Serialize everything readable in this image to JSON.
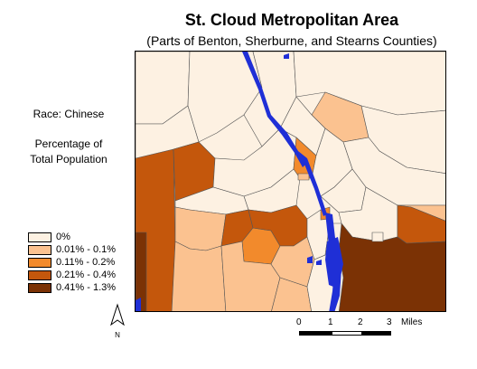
{
  "title": "St. Cloud Metropolitan Area",
  "subtitle": "(Parts of Benton, Sherburne, and Stearns Counties)",
  "race_label": "Race: Chinese",
  "percentage_label_line1": "Percentage of",
  "percentage_label_line2": "Total Population",
  "legend": [
    {
      "label": "0%",
      "color": "#fdf1e2"
    },
    {
      "label": "0.01% - 0.1%",
      "color": "#fbc290"
    },
    {
      "label": "0.11% - 0.2%",
      "color": "#f28a2c"
    },
    {
      "label": "0.21% - 0.4%",
      "color": "#c4570c"
    },
    {
      "label": "0.41% - 1.3%",
      "color": "#7b3205"
    }
  ],
  "water_color": "#1f2fd6",
  "north_label": "N",
  "scale": {
    "ticks": [
      "0",
      "1",
      "2",
      "3"
    ],
    "unit": "Miles"
  }
}
